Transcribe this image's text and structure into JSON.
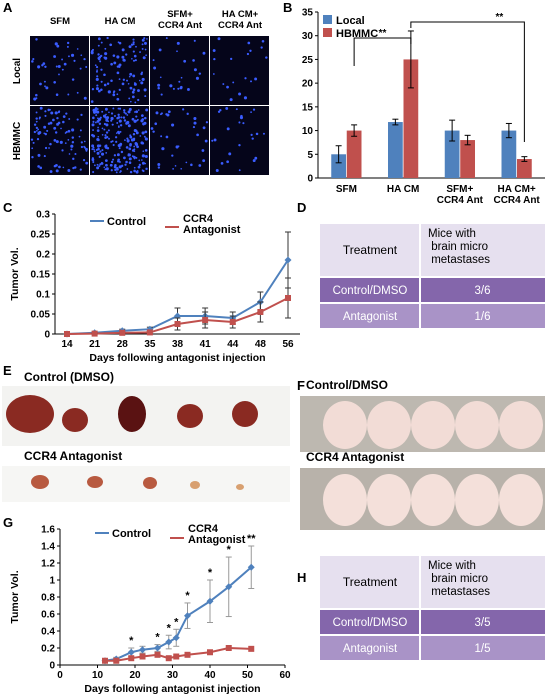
{
  "panel_labels": [
    "A",
    "B",
    "C",
    "D",
    "E",
    "F",
    "G",
    "H"
  ],
  "panel_a": {
    "columns": [
      [
        "SFM"
      ],
      [
        "HA CM"
      ],
      [
        "SFM+",
        "CCR4 Ant"
      ],
      [
        "HA CM+",
        "CCR4 Ant"
      ]
    ],
    "rows": [
      "Local",
      "HBMMC"
    ]
  },
  "chart_data": [
    {
      "type": "bar",
      "categories": [
        [
          "SFM"
        ],
        [
          "HA CM"
        ],
        [
          "SFM+",
          "CCR4 Ant"
        ],
        [
          "HA CM+",
          "CCR4 Ant"
        ]
      ],
      "series": [
        {
          "name": "Local",
          "color": "#4f81bd",
          "values": [
            5,
            11.8,
            10,
            10
          ],
          "errors": [
            1.8,
            0.6,
            2.2,
            1.5
          ]
        },
        {
          "name": "HBMMC",
          "color": "#c0504d",
          "values": [
            10,
            25,
            8,
            4
          ],
          "errors": [
            1.2,
            6,
            1,
            0.5
          ]
        }
      ],
      "ylim": [
        0,
        35
      ],
      "yticks": [
        0,
        5,
        10,
        15,
        20,
        25,
        30,
        35
      ],
      "legend": "top-left",
      "annotations": [
        "**",
        "**"
      ]
    },
    {
      "type": "line",
      "ylabel": "Tumor Vol.",
      "xlabel": "Days following antagonist injection",
      "categories": [
        "14",
        "21",
        "28",
        "35",
        "38",
        "41",
        "44",
        "48",
        "56"
      ],
      "series": [
        {
          "name": "Control",
          "color": "#4f81bd",
          "values": [
            0,
            0.003,
            0.008,
            0.012,
            0.045,
            0.045,
            0.04,
            0.08,
            0.185
          ],
          "errors": [
            0.001,
            0.002,
            0.004,
            0.005,
            0.02,
            0.02,
            0.015,
            0.025,
            0.07
          ]
        },
        {
          "name": "CCR4 Antagonist",
          "color": "#c0504d",
          "values": [
            0,
            0.001,
            0.003,
            0.004,
            0.025,
            0.035,
            0.03,
            0.055,
            0.09
          ],
          "errors": [
            0.001,
            0.001,
            0.002,
            0.003,
            0.015,
            0.02,
            0.015,
            0.025,
            0.05
          ]
        }
      ],
      "ylim": [
        0,
        0.3
      ],
      "yticks": [
        0,
        0.05,
        0.1,
        0.15,
        0.2,
        0.25,
        0.3
      ],
      "legend": "top-left"
    },
    {
      "type": "scatter-line",
      "ylabel": "Tumor Vol.",
      "xlabel": "Days following antagonist injection",
      "x": [
        12,
        15,
        19,
        22,
        26,
        29,
        31,
        34,
        40,
        45,
        51
      ],
      "series": [
        {
          "name": "Control",
          "color": "#4f81bd",
          "values": [
            0.05,
            0.07,
            0.15,
            0.18,
            0.2,
            0.27,
            0.32,
            0.58,
            0.75,
            0.92,
            1.15
          ],
          "errors": [
            0.01,
            0.02,
            0.05,
            0.04,
            0.04,
            0.08,
            0.1,
            0.15,
            0.25,
            0.35,
            0.25
          ]
        },
        {
          "name": "CCR4 Antagonist",
          "color": "#c0504d",
          "values": [
            0.05,
            0.05,
            0.08,
            0.1,
            0.12,
            0.08,
            0.1,
            0.12,
            0.15,
            0.2,
            0.19
          ],
          "errors": [
            0.01,
            0.01,
            0.02,
            0.02,
            0.03,
            0.02,
            0.02,
            0.03,
            0.03,
            0.04,
            0.03
          ]
        }
      ],
      "xlim": [
        0,
        60
      ],
      "xticks": [
        0,
        10,
        20,
        30,
        40,
        50,
        60
      ],
      "ylim": [
        0,
        1.6
      ],
      "yticks": [
        0,
        0.2,
        0.4,
        0.6,
        0.8,
        1,
        1.2,
        1.4,
        1.6
      ],
      "legend": "top-left",
      "annotations": [
        {
          "x": 19,
          "text": "*"
        },
        {
          "x": 26,
          "text": "*"
        },
        {
          "x": 29,
          "text": "*"
        },
        {
          "x": 31,
          "text": "*"
        },
        {
          "x": 34,
          "text": "*"
        },
        {
          "x": 40,
          "text": "*"
        },
        {
          "x": 45,
          "text": "*"
        },
        {
          "x": 51,
          "text": "**"
        }
      ]
    }
  ],
  "table_d": {
    "header": [
      "Treatment",
      "Mice with brain micro metastases"
    ],
    "rows": [
      [
        "Control/DMSO",
        "3/6"
      ],
      [
        "Antagonist",
        "1/6"
      ]
    ]
  },
  "panel_e": {
    "labels": [
      "Control (DMSO)",
      "CCR4 Antagonist"
    ]
  },
  "panel_f": {
    "labels": [
      "Control/DMSO",
      "CCR4 Antagonist"
    ]
  },
  "table_h": {
    "header": [
      "Treatment",
      "Mice with brain micro metastases"
    ],
    "rows": [
      [
        "Control/DMSO",
        "3/5"
      ],
      [
        "Antagonist",
        "1/5"
      ]
    ]
  }
}
